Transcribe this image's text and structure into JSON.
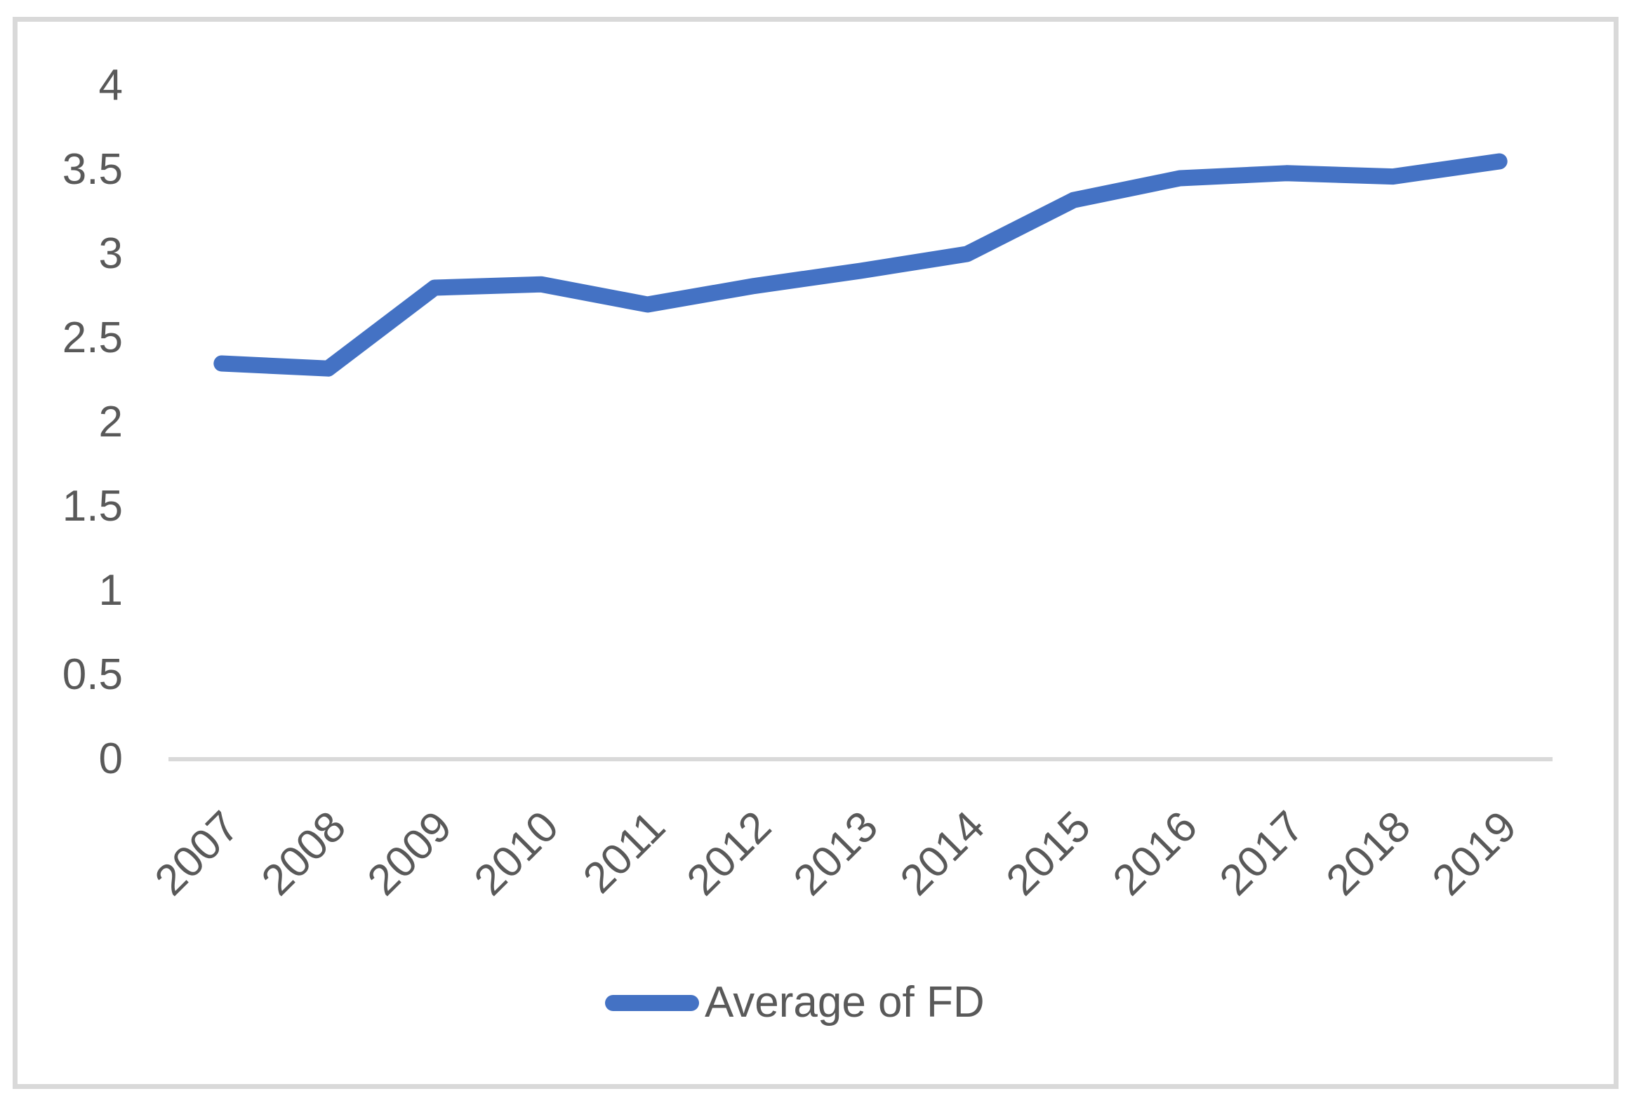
{
  "chart_data": {
    "type": "line",
    "title": "",
    "categories": [
      "2007",
      "2008",
      "2009",
      "2010",
      "2011",
      "2012",
      "2013",
      "2014",
      "2015",
      "2016",
      "2017",
      "2018",
      "2019"
    ],
    "series": [
      {
        "name": "Average of FD",
        "values": [
          2.35,
          2.32,
          2.8,
          2.82,
          2.7,
          2.81,
          2.9,
          3.0,
          3.32,
          3.45,
          3.48,
          3.46,
          3.55
        ]
      }
    ],
    "ylim": [
      0,
      4
    ],
    "yticks": [
      0,
      0.5,
      1,
      1.5,
      2,
      2.5,
      3,
      3.5,
      4
    ],
    "xlabel": "",
    "ylabel": "",
    "grid": false,
    "legend_position": "bottom-center",
    "x_label_rotation_deg": 45,
    "colors": {
      "series": "#4472C4",
      "axis_text": "#595959",
      "axis_line": "#D9D9D9",
      "frame_border": "#D9D9D9",
      "background": "#FFFFFF"
    }
  }
}
